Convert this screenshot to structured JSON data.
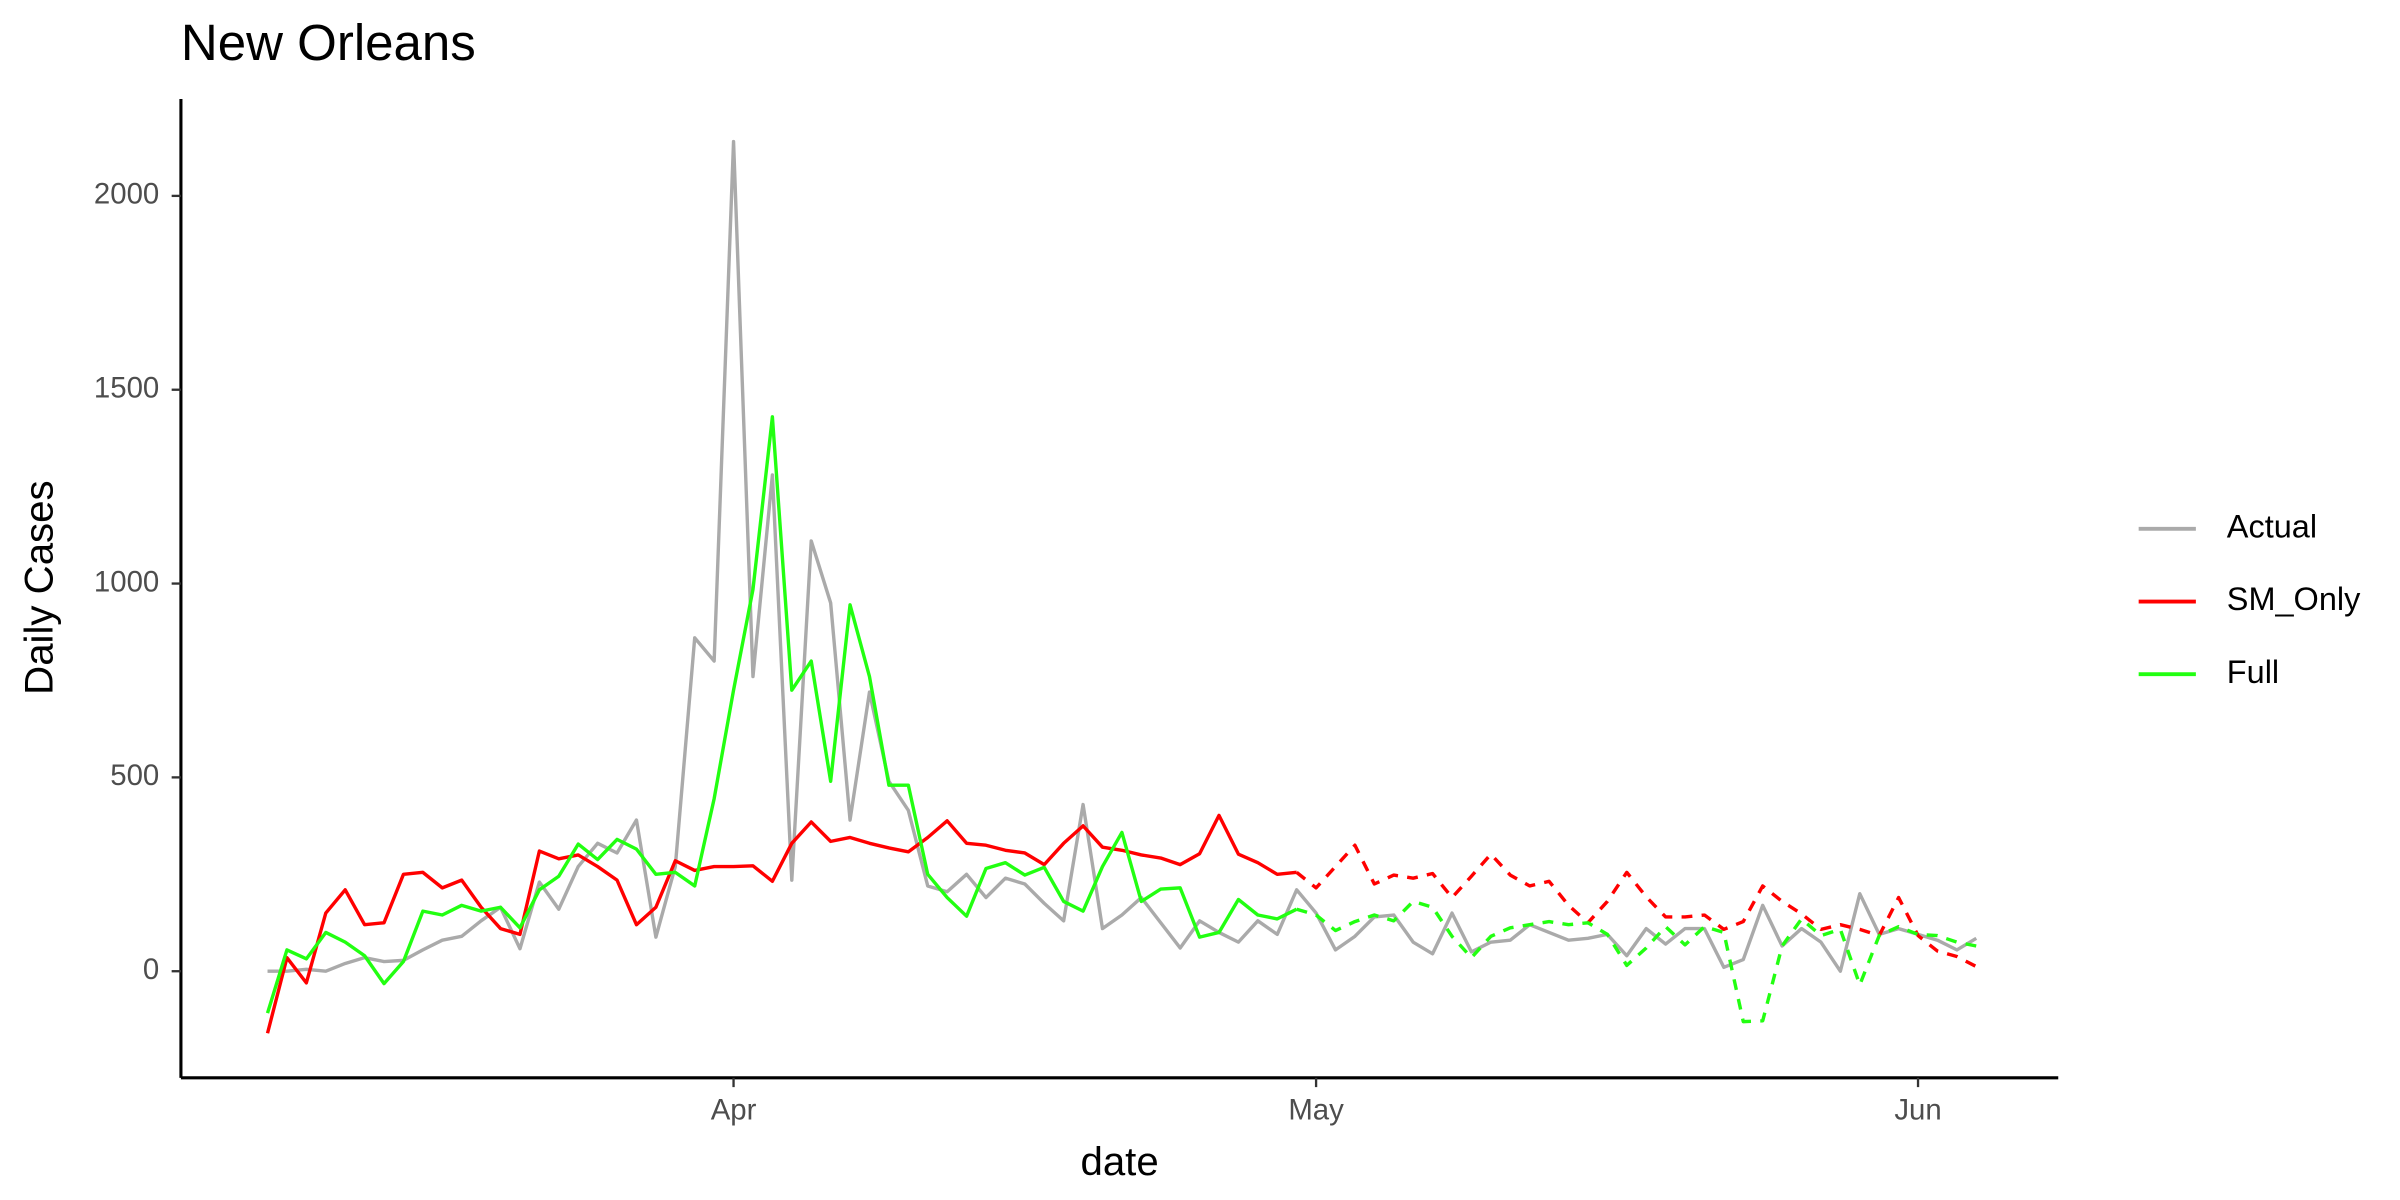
{
  "chart_data": {
    "type": "line",
    "title": "New Orleans",
    "x_label": "date",
    "y_label": "Daily Cases",
    "categories": [
      null,
      null,
      null,
      null,
      null,
      null,
      null,
      null,
      null,
      null,
      null,
      null,
      null,
      null,
      null,
      null,
      null,
      null,
      null,
      null,
      null,
      null,
      null,
      null,
      "Apr",
      null,
      null,
      null,
      null,
      null,
      null,
      null,
      null,
      null,
      null,
      null,
      null,
      null,
      null,
      null,
      null,
      null,
      null,
      null,
      null,
      null,
      null,
      null,
      null,
      null,
      null,
      null,
      null,
      null,
      "May",
      null,
      null,
      null,
      null,
      null,
      null,
      null,
      null,
      null,
      null,
      null,
      null,
      null,
      null,
      null,
      null,
      null,
      null,
      null,
      null,
      null,
      null,
      null,
      null,
      null,
      null,
      null,
      null,
      null,
      null,
      "Jun",
      null,
      null,
      null
    ],
    "series": [
      {
        "name": "Actual",
        "color": "#AAAAAA",
        "values": [
          0,
          0,
          5,
          0,
          20,
          35,
          25,
          28,
          55,
          80,
          90,
          130,
          165,
          58,
          230,
          160,
          270,
          330,
          305,
          390,
          88,
          270,
          860,
          800,
          2140,
          760,
          1280,
          235,
          1110,
          950,
          390,
          720,
          490,
          415,
          220,
          205,
          250,
          190,
          240,
          225,
          175,
          130,
          430,
          110,
          145,
          190,
          125,
          60,
          130,
          100,
          75,
          130,
          95,
          210,
          150,
          55,
          90,
          140,
          145,
          75,
          45,
          150,
          50,
          75,
          80,
          120,
          100,
          80,
          85,
          95,
          40,
          110,
          70,
          110,
          110,
          10,
          30,
          170,
          65,
          110,
          75,
          0,
          200,
          95,
          110,
          95,
          80,
          55,
          85
        ]
      },
      {
        "name": "SM_Only",
        "color": "#FF0000",
        "dashed_from": 53,
        "values": [
          -160,
          35,
          -30,
          150,
          210,
          120,
          125,
          250,
          255,
          215,
          235,
          165,
          110,
          95,
          310,
          290,
          300,
          270,
          235,
          120,
          165,
          285,
          260,
          270,
          270,
          272,
          232,
          330,
          385,
          335,
          345,
          330,
          318,
          308,
          345,
          388,
          330,
          325,
          312,
          305,
          275,
          330,
          375,
          320,
          312,
          300,
          292,
          275,
          303,
          402,
          302,
          280,
          250,
          255,
          215,
          270,
          325,
          225,
          248,
          240,
          252,
          190,
          245,
          302,
          248,
          220,
          232,
          170,
          125,
          180,
          255,
          192,
          140,
          140,
          145,
          108,
          128,
          220,
          180,
          148,
          108,
          120,
          108,
          92,
          190,
          92,
          52,
          38,
          12
        ]
      },
      {
        "name": "Full",
        "color": "#22FF11",
        "dashed_from": 53,
        "values": [
          -108,
          55,
          32,
          100,
          75,
          40,
          -32,
          25,
          155,
          145,
          170,
          155,
          165,
          112,
          210,
          245,
          328,
          288,
          340,
          315,
          250,
          255,
          220,
          445,
          725,
          985,
          1430,
          725,
          800,
          490,
          945,
          760,
          480,
          480,
          250,
          190,
          142,
          265,
          280,
          248,
          268,
          180,
          155,
          270,
          358,
          180,
          212,
          215,
          88,
          100,
          185,
          145,
          135,
          160,
          145,
          105,
          128,
          145,
          130,
          180,
          165,
          90,
          35,
          90,
          112,
          120,
          128,
          120,
          125,
          95,
          15,
          60,
          115,
          68,
          115,
          100,
          -130,
          -128,
          65,
          135,
          92,
          108,
          -35,
          92,
          115,
          95,
          92,
          75,
          65
        ]
      }
    ],
    "ylim": [
      -275,
      2250
    ],
    "yticks": [
      0,
      500,
      1000,
      1500,
      2000
    ],
    "grid": false,
    "legend": "right"
  }
}
